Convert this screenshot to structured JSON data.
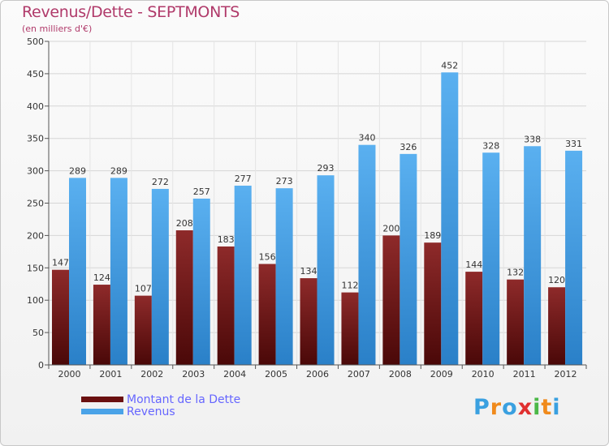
{
  "chart_data": {
    "type": "bar",
    "title": "Revenus/Dette - SEPTMONTS",
    "subtitle": "(en milliers d'€)",
    "categories": [
      "2000",
      "2001",
      "2002",
      "2003",
      "2004",
      "2005",
      "2006",
      "2007",
      "2008",
      "2009",
      "2010",
      "2011",
      "2012"
    ],
    "series": [
      {
        "name": "Montant de la Dette",
        "values": [
          147,
          124,
          107,
          208,
          183,
          156,
          134,
          112,
          200,
          189,
          144,
          132,
          120
        ],
        "color": "#7a1a1a"
      },
      {
        "name": "Revenus",
        "values": [
          289,
          289,
          272,
          257,
          277,
          273,
          293,
          340,
          326,
          452,
          328,
          338,
          331
        ],
        "color": "#4aa3e8"
      }
    ],
    "ylim": [
      0,
      500
    ],
    "yticks": [
      0,
      50,
      100,
      150,
      200,
      250,
      300,
      350,
      400,
      450,
      500
    ],
    "grid": true,
    "legend_placement": "bottom-left"
  },
  "branding": {
    "logo_letters": [
      "P",
      "r",
      "o",
      "x",
      "i",
      "t",
      "i"
    ],
    "logo_colors": [
      "#3aa0e0",
      "#f08a1c",
      "#3aa0e0",
      "#e03030",
      "#4cb848",
      "#f08a1c",
      "#3aa0e0"
    ]
  }
}
